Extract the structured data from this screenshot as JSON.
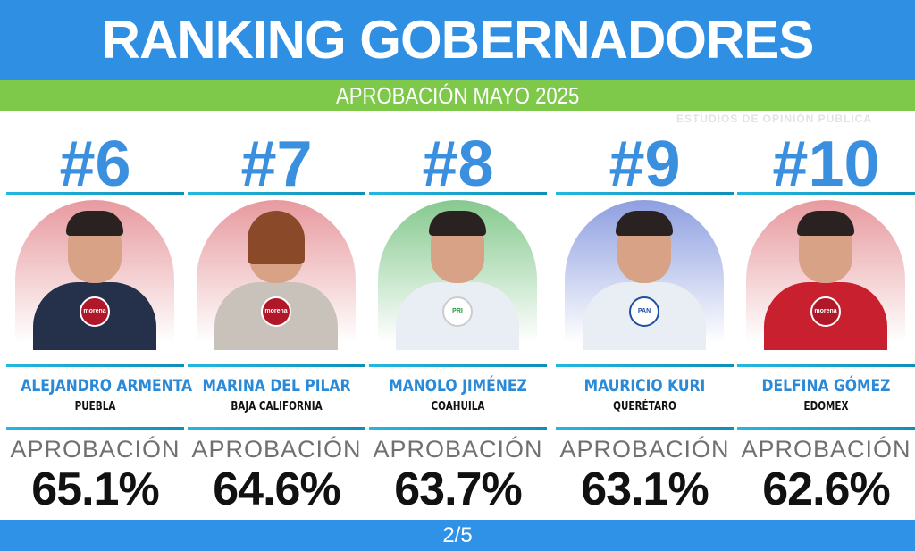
{
  "header": {
    "title": "RANKING GOBERNADORES",
    "subtitle": "APROBACIÓN MAYO 2025"
  },
  "watermark": "ESTUDIOS DE OPINIÓN PÚBLICA",
  "governors": [
    {
      "rank": "#6",
      "name": "ALEJANDRO ARMENTA",
      "state": "PUEBLA",
      "label": "APROBACIÓN",
      "approval": "65.1%",
      "party": "morena",
      "party_color": "#b0182a",
      "bg_color": "#e79a9f"
    },
    {
      "rank": "#7",
      "name": "MARINA DEL PILAR",
      "state": "BAJA CALIFORNIA",
      "label": "APROBACIÓN",
      "approval": "64.6%",
      "party": "morena",
      "party_color": "#b0182a",
      "bg_color": "#e79a9f"
    },
    {
      "rank": "#8",
      "name": "MANOLO JIMÉNEZ",
      "state": "COAHUILA",
      "label": "APROBACIÓN",
      "approval": "63.7%",
      "party": "PRI",
      "party_color": "#1f9a3c",
      "bg_color": "#86c98f"
    },
    {
      "rank": "#9",
      "name": "MAURICIO KURI",
      "state": "QUERÉTARO",
      "label": "APROBACIÓN",
      "approval": "63.1%",
      "party": "PAN",
      "party_color": "#1e4fa0",
      "bg_color": "#8e9fe0"
    },
    {
      "rank": "#10",
      "name": "DELFINA GÓMEZ",
      "state": "EDOMEX",
      "label": "APROBACIÓN",
      "approval": "62.6%",
      "party": "morena",
      "party_color": "#b0182a",
      "bg_color": "#e79a9f"
    }
  ],
  "footer": {
    "page": "2/5"
  }
}
